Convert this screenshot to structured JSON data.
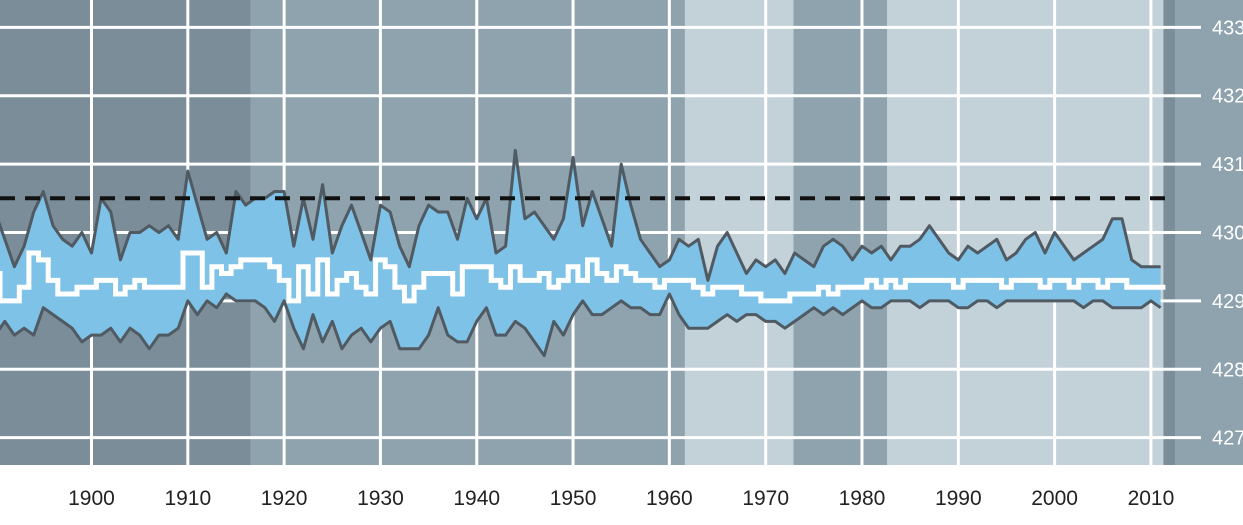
{
  "chart_data": {
    "type": "line",
    "x_axis": {
      "range": [
        1890.5,
        2012.5
      ],
      "ticks": [
        1900,
        1910,
        1920,
        1930,
        1940,
        1950,
        1960,
        1970,
        1980,
        1990,
        2000,
        2010
      ],
      "tick_labels": [
        "1900",
        "1910",
        "1920",
        "1930",
        "1940",
        "1950",
        "1960",
        "1970",
        "1980",
        "1990",
        "2000",
        "2010"
      ]
    },
    "y_axis": {
      "range": [
        426.6,
        433.4
      ],
      "ticks": [
        427,
        428,
        429,
        430,
        431,
        432,
        433
      ],
      "tick_labels": [
        "427",
        "428",
        "429",
        "430",
        "431",
        "432",
        "433"
      ],
      "position": "right"
    },
    "grid": true,
    "reference_line": {
      "y": 430.5,
      "style": "dashed"
    },
    "shaded_periods": [
      {
        "x": [
          1890.5,
          1906.5
        ],
        "shade": "dark"
      },
      {
        "x": [
          1916.5,
          1961.6
        ],
        "shade": "medium"
      },
      {
        "x": [
          1961.6,
          1972.9
        ],
        "shade": "light"
      },
      {
        "x": [
          1972.9,
          1982.6
        ],
        "shade": "medium"
      },
      {
        "x": [
          1982.6,
          2011.3
        ],
        "shade": "light"
      }
    ],
    "series": [
      {
        "role": "max",
        "x": [
          1890,
          1891,
          1892,
          1893,
          1894,
          1895,
          1896,
          1897,
          1898,
          1899,
          1900,
          1901,
          1902,
          1903,
          1904,
          1905,
          1906,
          1907,
          1908,
          1909,
          1910,
          1911,
          1912,
          1913,
          1914,
          1915,
          1916,
          1917,
          1918,
          1919,
          1920,
          1921,
          1922,
          1923,
          1924,
          1925,
          1926,
          1927,
          1928,
          1929,
          1930,
          1931,
          1932,
          1933,
          1934,
          1935,
          1936,
          1937,
          1938,
          1939,
          1940,
          1941,
          1942,
          1943,
          1944,
          1945,
          1946,
          1947,
          1948,
          1949,
          1950,
          1951,
          1952,
          1953,
          1954,
          1955,
          1956,
          1957,
          1958,
          1959,
          1960,
          1961,
          1962,
          1963,
          1964,
          1965,
          1966,
          1967,
          1968,
          1969,
          1970,
          1971,
          1972,
          1973,
          1974,
          1975,
          1976,
          1977,
          1978,
          1979,
          1980,
          1981,
          1982,
          1983,
          1984,
          1985,
          1986,
          1987,
          1988,
          1989,
          1990,
          1991,
          1992,
          1993,
          1994,
          1995,
          1996,
          1997,
          1998,
          1999,
          2000,
          2001,
          2002,
          2003,
          2004,
          2005,
          2006,
          2007,
          2008,
          2009,
          2010,
          2011
        ],
        "values": [
          430.3,
          429.9,
          429.5,
          429.8,
          430.3,
          430.6,
          430.1,
          429.9,
          429.8,
          430.0,
          429.7,
          430.5,
          430.3,
          429.6,
          430.0,
          430.0,
          430.1,
          430.0,
          430.1,
          429.9,
          430.9,
          430.4,
          429.9,
          430.0,
          429.7,
          430.6,
          430.4,
          430.5,
          430.5,
          430.6,
          430.6,
          429.8,
          430.5,
          429.9,
          430.7,
          429.7,
          430.1,
          430.4,
          430.0,
          429.6,
          430.4,
          430.3,
          429.8,
          429.5,
          430.1,
          430.4,
          430.3,
          430.3,
          429.9,
          430.5,
          430.2,
          430.5,
          429.7,
          429.8,
          431.2,
          430.2,
          430.3,
          430.1,
          429.9,
          430.2,
          431.1,
          430.1,
          430.6,
          430.2,
          429.8,
          431.0,
          430.4,
          429.9,
          429.7,
          429.5,
          429.6,
          429.9,
          429.8,
          429.9,
          429.3,
          429.8,
          430.0,
          429.7,
          429.4,
          429.6,
          429.5,
          429.6,
          429.4,
          429.7,
          429.6,
          429.5,
          429.8,
          429.9,
          429.8,
          429.6,
          429.8,
          429.7,
          429.8,
          429.6,
          429.8,
          429.8,
          429.9,
          430.1,
          429.9,
          429.7,
          429.6,
          429.8,
          429.7,
          429.8,
          429.9,
          429.6,
          429.7,
          429.9,
          430.0,
          429.7,
          430.0,
          429.8,
          429.6,
          429.7,
          429.8,
          429.9,
          430.2,
          430.2,
          429.6,
          429.5,
          429.5,
          429.5
        ]
      },
      {
        "role": "mean",
        "x": [
          1890,
          1891,
          1892,
          1893,
          1894,
          1895,
          1896,
          1897,
          1898,
          1899,
          1900,
          1901,
          1902,
          1903,
          1904,
          1905,
          1906,
          1907,
          1908,
          1909,
          1910,
          1911,
          1912,
          1913,
          1914,
          1915,
          1916,
          1917,
          1918,
          1919,
          1920,
          1921,
          1922,
          1923,
          1924,
          1925,
          1926,
          1927,
          1928,
          1929,
          1930,
          1931,
          1932,
          1933,
          1934,
          1935,
          1936,
          1937,
          1938,
          1939,
          1940,
          1941,
          1942,
          1943,
          1944,
          1945,
          1946,
          1947,
          1948,
          1949,
          1950,
          1951,
          1952,
          1953,
          1954,
          1955,
          1956,
          1957,
          1958,
          1959,
          1960,
          1961,
          1962,
          1963,
          1964,
          1965,
          1966,
          1967,
          1968,
          1969,
          1970,
          1971,
          1972,
          1973,
          1974,
          1975,
          1976,
          1977,
          1978,
          1979,
          1980,
          1981,
          1982,
          1983,
          1984,
          1985,
          1986,
          1987,
          1988,
          1989,
          1990,
          1991,
          1992,
          1993,
          1994,
          1995,
          1996,
          1997,
          1998,
          1999,
          2000,
          2001,
          2002,
          2003,
          2004,
          2005,
          2006,
          2007,
          2008,
          2009,
          2010,
          2011
        ],
        "values": [
          429.4,
          429.0,
          429.0,
          429.2,
          429.7,
          429.6,
          429.3,
          429.1,
          429.1,
          429.2,
          429.2,
          429.3,
          429.3,
          429.1,
          429.2,
          429.3,
          429.2,
          429.2,
          429.2,
          429.2,
          429.7,
          429.7,
          429.2,
          429.5,
          429.4,
          429.5,
          429.6,
          429.6,
          429.6,
          429.5,
          429.3,
          429.0,
          429.5,
          429.1,
          429.6,
          429.1,
          429.3,
          429.4,
          429.2,
          429.1,
          429.6,
          429.5,
          429.2,
          429.0,
          429.2,
          429.4,
          429.4,
          429.4,
          429.1,
          429.5,
          429.5,
          429.5,
          429.3,
          429.2,
          429.5,
          429.3,
          429.3,
          429.4,
          429.2,
          429.3,
          429.5,
          429.3,
          429.6,
          429.4,
          429.3,
          429.5,
          429.4,
          429.3,
          429.3,
          429.2,
          429.3,
          429.3,
          429.3,
          429.2,
          429.1,
          429.2,
          429.2,
          429.2,
          429.1,
          429.1,
          429.0,
          429.0,
          429.0,
          429.1,
          429.1,
          429.1,
          429.2,
          429.1,
          429.2,
          429.2,
          429.2,
          429.3,
          429.2,
          429.3,
          429.2,
          429.3,
          429.3,
          429.3,
          429.3,
          429.3,
          429.2,
          429.3,
          429.3,
          429.3,
          429.3,
          429.2,
          429.3,
          429.3,
          429.3,
          429.2,
          429.3,
          429.3,
          429.2,
          429.3,
          429.3,
          429.2,
          429.3,
          429.3,
          429.2,
          429.2,
          429.2,
          429.2
        ]
      },
      {
        "role": "min",
        "x": [
          1890,
          1891,
          1892,
          1893,
          1894,
          1895,
          1896,
          1897,
          1898,
          1899,
          1900,
          1901,
          1902,
          1903,
          1904,
          1905,
          1906,
          1907,
          1908,
          1909,
          1910,
          1911,
          1912,
          1913,
          1914,
          1915,
          1916,
          1917,
          1918,
          1919,
          1920,
          1921,
          1922,
          1923,
          1924,
          1925,
          1926,
          1927,
          1928,
          1929,
          1930,
          1931,
          1932,
          1933,
          1934,
          1935,
          1936,
          1937,
          1938,
          1939,
          1940,
          1941,
          1942,
          1943,
          1944,
          1945,
          1946,
          1947,
          1948,
          1949,
          1950,
          1951,
          1952,
          1953,
          1954,
          1955,
          1956,
          1957,
          1958,
          1959,
          1960,
          1961,
          1962,
          1963,
          1964,
          1965,
          1966,
          1967,
          1968,
          1969,
          1970,
          1971,
          1972,
          1973,
          1974,
          1975,
          1976,
          1977,
          1978,
          1979,
          1980,
          1981,
          1982,
          1983,
          1984,
          1985,
          1986,
          1987,
          1988,
          1989,
          1990,
          1991,
          1992,
          1993,
          1994,
          1995,
          1996,
          1997,
          1998,
          1999,
          2000,
          2001,
          2002,
          2003,
          2004,
          2005,
          2006,
          2007,
          2008,
          2009,
          2010,
          2011
        ],
        "values": [
          428.5,
          428.7,
          428.5,
          428.6,
          428.5,
          428.9,
          428.8,
          428.7,
          428.6,
          428.4,
          428.5,
          428.5,
          428.6,
          428.4,
          428.6,
          428.5,
          428.3,
          428.5,
          428.5,
          428.6,
          429.0,
          428.8,
          429.0,
          428.9,
          429.1,
          429.0,
          429.0,
          429.0,
          428.9,
          428.7,
          429.0,
          428.6,
          428.3,
          428.8,
          428.4,
          428.7,
          428.3,
          428.5,
          428.6,
          428.4,
          428.6,
          428.7,
          428.3,
          428.3,
          428.3,
          428.5,
          428.9,
          428.5,
          428.4,
          428.4,
          428.7,
          428.9,
          428.5,
          428.5,
          428.7,
          428.6,
          428.4,
          428.2,
          428.7,
          428.5,
          428.8,
          429.0,
          428.8,
          428.8,
          428.9,
          429.0,
          428.9,
          428.9,
          428.8,
          428.8,
          429.1,
          428.8,
          428.6,
          428.6,
          428.6,
          428.7,
          428.8,
          428.7,
          428.8,
          428.8,
          428.7,
          428.7,
          428.6,
          428.7,
          428.8,
          428.9,
          428.8,
          428.9,
          428.8,
          428.9,
          429.0,
          428.9,
          428.9,
          429.0,
          429.0,
          429.0,
          428.9,
          429.0,
          429.0,
          429.0,
          428.9,
          428.9,
          429.0,
          429.0,
          428.9,
          429.0,
          429.0,
          429.0,
          429.0,
          429.0,
          429.0,
          429.0,
          429.0,
          428.9,
          429.0,
          429.0,
          428.9,
          428.9,
          428.9,
          428.9,
          429.0,
          428.9
        ]
      }
    ],
    "colors": {
      "band_fill": "#7ec2e8",
      "max_min_line": "#505a62",
      "mean_line": "#ffffff",
      "reference_line": "#111111",
      "grid": "#ffffff",
      "bg_dark": "#7a8d99",
      "bg_medium": "#8fa3ae",
      "bg_light": "#c3d1d9",
      "axis_strip": "#8fa3ae"
    }
  }
}
